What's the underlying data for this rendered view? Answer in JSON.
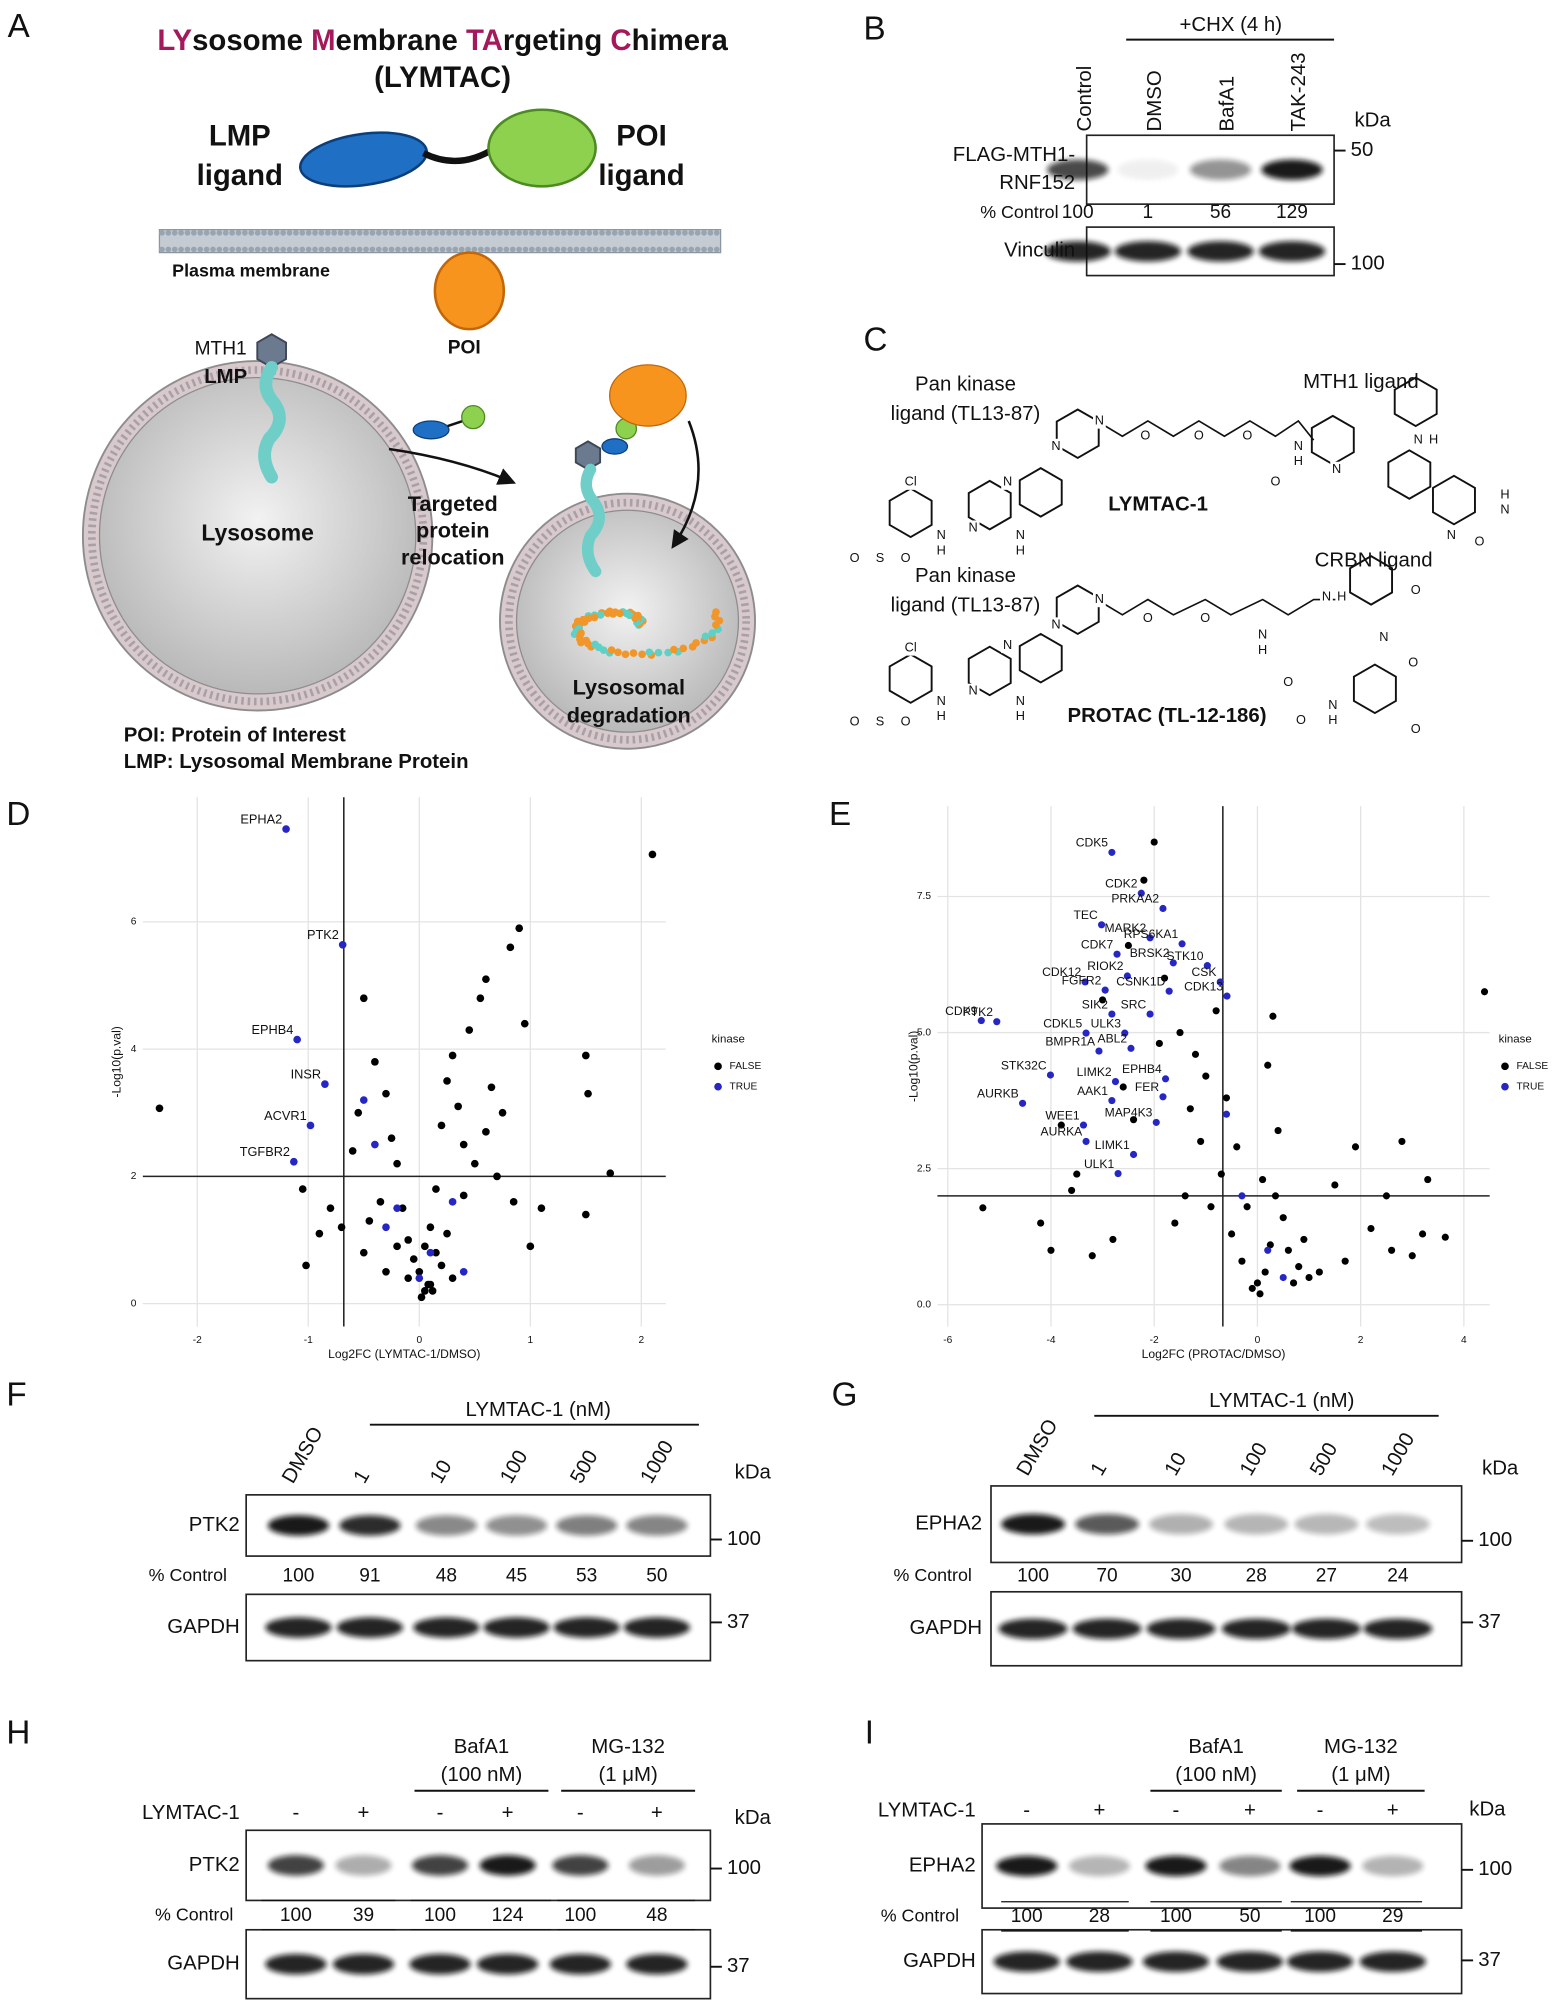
{
  "panel_a": {
    "letter": "A",
    "title_parts": [
      "LY",
      "sosome ",
      "M",
      "embrane ",
      "TA",
      "rgeting ",
      "C",
      "himera"
    ],
    "subtitle": "(LYMTAC)",
    "lmp_ligand": [
      "LMP",
      "ligand"
    ],
    "poi_ligand": [
      "POI",
      "ligand"
    ],
    "membrane": "Plasma membrane",
    "poi": "POI",
    "mth1": "MTH1",
    "lmp": "LMP",
    "lysosome": "Lysosome",
    "relocation": [
      "Targeted",
      "protein",
      "relocation"
    ],
    "degradation": [
      "Lysosomal",
      "degradation"
    ],
    "footnotes": [
      "POI: Protein of Interest",
      "LMP: Lysosomal Membrane Protein"
    ]
  },
  "panel_b": {
    "letter": "B",
    "treatment": "+CHX (4 h)",
    "lanes": [
      "Control",
      "DMSO",
      "BafA1",
      "TAK-243"
    ],
    "kda": "kDa",
    "blot_label": [
      "FLAG-MTH1-",
      "RNF152"
    ],
    "blot_marker": "50",
    "quant_label": "% Control",
    "quant": [
      100,
      1,
      56,
      129
    ],
    "loading_label": "Vinculin",
    "loading_marker": "100"
  },
  "panel_c": {
    "letter": "C",
    "compounds": [
      {
        "left_label": [
          "Pan kinase",
          "ligand (TL13-87)"
        ],
        "right_label": "MTH1 ligand",
        "name": "LYMTAC-1",
        "atoms": [
          "Cl",
          "N",
          "N",
          "N",
          "H",
          "N",
          "H",
          "S",
          "O",
          "O",
          "N",
          "N",
          "O",
          "O",
          "O",
          "N",
          "H",
          "O",
          "N",
          "N",
          "H",
          "O",
          "N",
          "H",
          "N"
        ]
      },
      {
        "left_label": [
          "Pan kinase",
          "ligand (TL13-87)"
        ],
        "right_label": "CRBN ligand",
        "name": "PROTAC (TL-12-186)",
        "atoms": [
          "Cl",
          "N",
          "N",
          "N",
          "H",
          "N",
          "H",
          "S",
          "O",
          "O",
          "N",
          "N",
          "O",
          "O",
          "N",
          "H",
          "O",
          "N",
          "H",
          "O",
          "N",
          "O",
          "O",
          "N",
          "H",
          "O"
        ]
      }
    ]
  },
  "chart_data": [
    {
      "type": "scatter",
      "panel": "D",
      "xlabel": "Log2FC (LYMTAC-1/DMSO)",
      "ylabel": "-Log10(p.val)",
      "xlim": [
        -2.49,
        2.22
      ],
      "ylim": [
        -0.36,
        7.96
      ],
      "xticks": [
        -2,
        -1,
        0,
        1,
        2
      ],
      "yticks": [
        0,
        2,
        4,
        6
      ],
      "grid": true,
      "reference_lines": {
        "x": -0.68,
        "y": 2
      },
      "legend": "right",
      "legend_title": "kinase",
      "series": [
        {
          "name": "FALSE",
          "color": "#000000",
          "x": [
            -2.34,
            2.1,
            1.5,
            1.52,
            1.72,
            1.5,
            0.9,
            0.82,
            0.6,
            0.55,
            0.45,
            0.3,
            0.25,
            0.2,
            0.35,
            0.4,
            0.15,
            0.1,
            0.05,
            0,
            -0.05,
            -0.1,
            -0.15,
            -0.2,
            -0.25,
            -0.3,
            -0.4,
            -0.5,
            -0.55,
            -0.6,
            -0.35,
            -0.45,
            0.5,
            0.7,
            0.65,
            0.85,
            1.0,
            1.1,
            0.95,
            -0.8,
            -0.9,
            -1.05,
            -1.02,
            -0.7,
            0.3,
            0.2,
            0.1,
            -0.1,
            0.05,
            0.15,
            0.25,
            -0.2,
            0.4,
            0.6,
            0.75,
            -0.5,
            -0.3,
            0.02,
            0.08,
            0.12
          ],
          "values": [
            3.07,
            7.06,
            3.9,
            3.3,
            2.05,
            1.4,
            5.9,
            5.6,
            5.1,
            4.8,
            4.3,
            3.9,
            3.5,
            2.8,
            3.1,
            2.5,
            1.8,
            1.2,
            0.9,
            0.5,
            0.7,
            1.0,
            1.5,
            2.2,
            2.6,
            3.3,
            3.8,
            4.8,
            3.0,
            2.4,
            1.6,
            1.3,
            2.2,
            2.0,
            3.4,
            1.6,
            0.9,
            1.5,
            4.4,
            1.5,
            1.1,
            1.8,
            0.6,
            1.2,
            0.4,
            0.6,
            0.3,
            0.4,
            0.2,
            0.8,
            1.1,
            0.9,
            1.7,
            2.7,
            3.0,
            0.8,
            0.5,
            0.1,
            0.3,
            0.2
          ]
        },
        {
          "name": "TRUE",
          "color": "#2626c4",
          "x": [
            -1.2,
            -0.69,
            -1.1,
            -0.85,
            -0.98,
            -1.13,
            -0.4,
            -0.2,
            0.1,
            0.3,
            -0.5,
            0.0,
            0.4,
            -0.3
          ],
          "values": [
            7.46,
            5.64,
            4.15,
            3.45,
            2.8,
            2.23,
            2.5,
            1.5,
            0.8,
            1.6,
            3.2,
            0.4,
            0.5,
            1.2
          ],
          "point_labels": [
            "EPHA2",
            "PTK2",
            "EPHB4",
            "INSR",
            "ACVR1",
            "TGFBR2",
            null,
            null,
            null,
            null,
            null,
            null,
            null,
            null
          ]
        }
      ]
    },
    {
      "type": "scatter",
      "panel": "E",
      "xlabel": "Log2FC (PROTAC/DMSO)",
      "ylabel": "-Log10(p.val)",
      "xlim": [
        -6.2,
        4.5
      ],
      "ylim": [
        -0.4,
        9.16
      ],
      "xticks": [
        -6,
        -4,
        -2,
        0,
        2,
        4
      ],
      "yticks": [
        {
          "value": 0,
          "label": "0.0"
        },
        2.5,
        {
          "value": 5,
          "label": "5.0"
        },
        7.5
      ],
      "grid": true,
      "reference_lines": {
        "x": -0.67,
        "y": 2
      },
      "legend": "right",
      "legend_title": "kinase",
      "series": [
        {
          "name": "FALSE",
          "color": "#000000",
          "x": [
            -5.32,
            3.64,
            4.4,
            3.2,
            2.6,
            1.7,
            1.5,
            2.2,
            3.0,
            -4.2,
            -3.8,
            -3.5,
            -3.0,
            -2.5,
            -2.2,
            -2.0,
            -1.8,
            -1.5,
            -1.2,
            -1.0,
            -0.8,
            -0.6,
            -0.4,
            -0.2,
            0,
            0.1,
            0.2,
            0.3,
            0.4,
            0.5,
            0.6,
            0.8,
            1.0,
            1.2,
            -1.4,
            -1.6,
            -2.8,
            -3.2,
            -2.4,
            -1.9,
            -1.1,
            -0.7,
            -0.5,
            -0.3,
            0.05,
            0.15,
            0.25,
            0.35,
            0.7,
            0.9,
            -2.6,
            -3.6,
            -4.0,
            -1.3,
            -0.9,
            2.5,
            1.9,
            2.8,
            3.3,
            -0.1
          ],
          "values": [
            1.78,
            1.24,
            5.75,
            1.3,
            1.0,
            0.8,
            2.2,
            1.4,
            0.9,
            1.5,
            3.3,
            2.4,
            5.6,
            6.6,
            7.8,
            8.5,
            6.0,
            5.0,
            4.6,
            4.2,
            5.4,
            3.8,
            2.9,
            1.8,
            0.4,
            2.3,
            4.4,
            5.3,
            3.2,
            1.6,
            1.0,
            0.7,
            0.5,
            0.6,
            2.0,
            1.5,
            1.2,
            0.9,
            3.4,
            4.8,
            3.0,
            2.4,
            1.3,
            0.8,
            0.2,
            0.6,
            1.1,
            2.0,
            0.4,
            1.2,
            4.0,
            2.1,
            1.0,
            3.6,
            1.8,
            2.0,
            2.9,
            3.0,
            2.3,
            0.3
          ]
        },
        {
          "name": "TRUE",
          "color": "#2626c4",
          "x": [
            -2.82,
            -2.25,
            -1.83,
            -3.02,
            -2.08,
            -1.46,
            -2.72,
            -1.63,
            -0.97,
            -3.34,
            -2.52,
            -0.72,
            -2.95,
            -1.71,
            -0.59,
            -5.35,
            -2.82,
            -2.08,
            -5.05,
            -3.32,
            -2.57,
            -2.45,
            -3.07,
            -2.75,
            -1.78,
            -4.01,
            -4.55,
            -2.82,
            -1.83,
            -3.37,
            -1.96,
            -3.32,
            -2.4,
            -2.7,
            0.5,
            -0.3,
            0.2,
            -0.6
          ],
          "values": [
            8.31,
            7.56,
            7.28,
            6.98,
            6.74,
            6.63,
            6.44,
            6.28,
            6.23,
            5.93,
            6.04,
            5.93,
            5.78,
            5.76,
            5.67,
            5.22,
            5.34,
            5.34,
            5.2,
            4.99,
            4.99,
            4.71,
            4.66,
            4.1,
            4.15,
            4.22,
            3.7,
            3.75,
            3.82,
            3.3,
            3.35,
            3.0,
            2.76,
            2.41,
            0.5,
            2.0,
            1.0,
            3.5
          ],
          "point_labels": [
            "CDK5",
            "CDK2",
            "PRKAA2",
            "TEC",
            "MARK2",
            "RPS6KA1",
            "CDK7",
            "BRSK2",
            "STK10",
            "CDK12",
            "RIOK2",
            "CSK",
            "FGFR2",
            "CSNK1D",
            "CDK13",
            "CDK9",
            "SIK2",
            "SRC",
            "PTK2",
            "CDKL5",
            "ULK3",
            "ABL2",
            "BMPR1A",
            "LIMK2",
            "EPHB4",
            "STK32C",
            "AURKB",
            "AAK1",
            "FER",
            "WEE1",
            "MAP4K3",
            "AURKA",
            "LIMK1",
            "ULK1",
            null,
            null,
            null,
            null
          ]
        }
      ]
    }
  ],
  "panel_f": {
    "letter": "F",
    "treatment": "LYMTAC-1 (nM)",
    "lanes": [
      "DMSO",
      "1",
      "10",
      "100",
      "500",
      "1000"
    ],
    "kda": "kDa",
    "blot_label": "PTK2",
    "blot_marker": "100",
    "quant_label": "% Control",
    "quant": [
      100,
      91,
      48,
      45,
      53,
      50
    ],
    "loading_label": "GAPDH",
    "loading_marker": "37"
  },
  "panel_g": {
    "letter": "G",
    "treatment": "LYMTAC-1 (nM)",
    "lanes": [
      "DMSO",
      "1",
      "10",
      "100",
      "500",
      "1000"
    ],
    "kda": "kDa",
    "blot_label": "EPHA2",
    "blot_marker": "100",
    "quant_label": "% Control",
    "quant": [
      100,
      70,
      30,
      28,
      27,
      24
    ],
    "loading_label": "GAPDH",
    "loading_marker": "37"
  },
  "panel_h": {
    "letter": "H",
    "groups": [
      {
        "name": "BafA1",
        "detail": "(100 nM)"
      },
      {
        "name": "MG-132",
        "detail": "(1 μM)"
      }
    ],
    "row_label": "LYMTAC-1",
    "signs": [
      "-",
      "+",
      "-",
      "+",
      "-",
      "+"
    ],
    "kda": "kDa",
    "blot_label": "PTK2",
    "blot_marker": "100",
    "quant_label": "% Control",
    "quant": [
      100,
      39,
      100,
      124,
      100,
      48
    ],
    "loading_label": "GAPDH",
    "loading_marker": "37"
  },
  "panel_i": {
    "letter": "I",
    "groups": [
      {
        "name": "BafA1",
        "detail": "(100 nM)"
      },
      {
        "name": "MG-132",
        "detail": "(1 μM)"
      }
    ],
    "row_label": "LYMTAC-1",
    "signs": [
      "-",
      "+",
      "-",
      "+",
      "-",
      "+"
    ],
    "kda": "kDa",
    "blot_label": "EPHA2",
    "blot_marker": "100",
    "quant_label": "% Control",
    "quant": [
      100,
      28,
      100,
      50,
      100,
      29
    ],
    "loading_label": "GAPDH",
    "loading_marker": "37"
  }
}
